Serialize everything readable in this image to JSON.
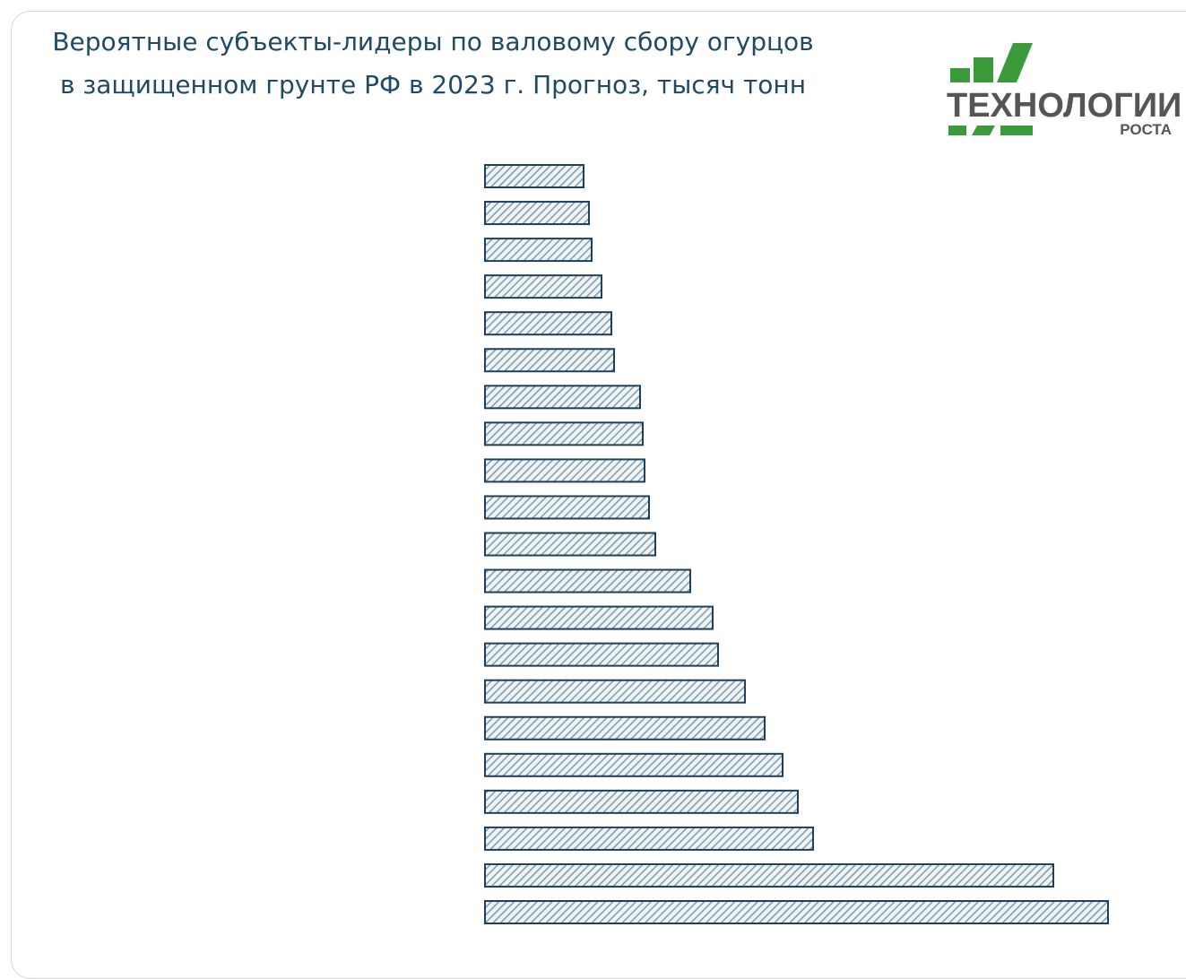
{
  "chart_data": {
    "type": "bar",
    "orientation": "horizontal",
    "title_lines": [
      "Вероятные субъекты-лидеры по валовому сбору огурцов",
      "в защищенном грунте РФ в 2023 г. Прогноз, тысяч тонн"
    ],
    "categories": [
      null,
      null,
      null,
      null,
      null,
      null,
      null,
      null,
      null,
      null,
      null,
      null,
      null,
      null,
      null,
      null,
      null,
      null,
      null,
      null,
      null
    ],
    "values": [
      22,
      23.2,
      23.8,
      26,
      28.2,
      28.8,
      34.6,
      35.2,
      35.6,
      36.6,
      38,
      45.8,
      50.8,
      52,
      58,
      62.4,
      66.4,
      69.8,
      73.2,
      126.8,
      139
    ],
    "color": "#1f3f5a"
  },
  "logo": {
    "main": "ТЕХНОЛОГИИ",
    "sub": "РОСТА"
  }
}
